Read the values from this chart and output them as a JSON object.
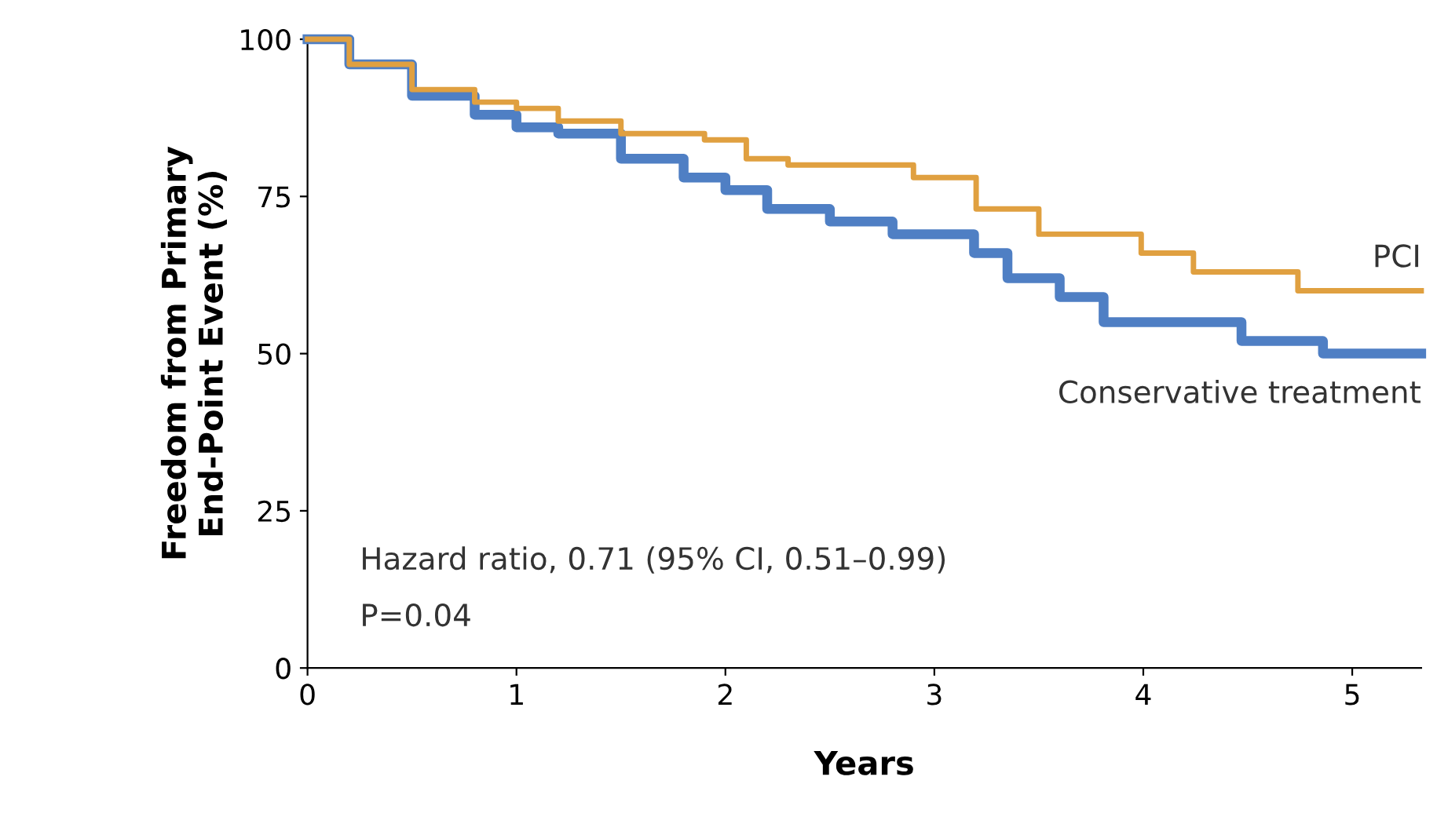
{
  "chart_data": {
    "type": "step",
    "xlabel": "Years",
    "ylabel": "Freedom from Primary\nEnd-Point Event (%)",
    "xlim": [
      0,
      5.33
    ],
    "ylim": [
      0,
      100
    ],
    "xticks": [
      0,
      1,
      2,
      3,
      4,
      5
    ],
    "yticks": [
      0,
      25,
      50,
      75,
      100
    ],
    "grid": false,
    "legend": false,
    "line_style": "solid",
    "series": [
      {
        "name": "PCI",
        "color": "#e0a040",
        "x": [
          0,
          0.2,
          0.5,
          0.8,
          1.0,
          1.2,
          1.5,
          1.9,
          2.1,
          2.3,
          2.9,
          3.2,
          3.5,
          3.99,
          4.24,
          4.74,
          5.33
        ],
        "values": [
          100,
          96,
          92,
          90,
          89,
          87,
          85,
          84,
          81,
          80,
          78,
          73,
          69,
          66,
          63,
          60,
          60
        ]
      },
      {
        "name": "Conservative treatment",
        "color": "#4f7fc4",
        "x": [
          0,
          0.2,
          0.5,
          0.8,
          1.0,
          1.2,
          1.5,
          1.8,
          2.0,
          2.2,
          2.5,
          2.8,
          3.19,
          3.35,
          3.6,
          3.81,
          4.47,
          4.86,
          5.33
        ],
        "values": [
          100,
          96,
          91,
          88,
          86,
          85,
          81,
          78,
          76,
          73,
          71,
          69,
          66,
          62,
          59,
          55,
          52,
          50,
          50
        ]
      }
    ],
    "annotations": [
      "Hazard ratio, 0.71 (95% CI, 0.51–0.99)",
      "P=0.04"
    ]
  }
}
